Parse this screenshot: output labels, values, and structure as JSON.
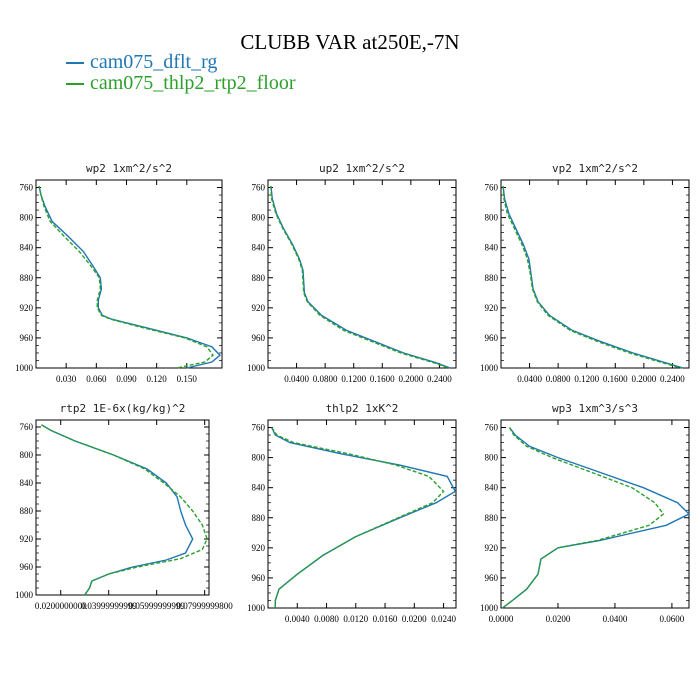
{
  "title": "CLUBB VAR at250E,-7N",
  "legend": [
    {
      "label": "cam075_dflt_rg",
      "color": "#1f77b4",
      "style": "solid"
    },
    {
      "label": "cam075_thlp2_rtp2_floor",
      "color": "#2ca02c",
      "style": "dashed"
    }
  ],
  "chart_data": [
    {
      "type": "line",
      "title": "wp2  1xm^2/s^2",
      "ylim": [
        1000,
        750
      ],
      "xlim": [
        0,
        0.185
      ],
      "yticks": [
        "760",
        "800",
        "840",
        "880",
        "920",
        "960",
        "1000"
      ],
      "xticks": [
        {
          "v": 0.03,
          "t": "0.030"
        },
        {
          "v": 0.06,
          "t": "0.060"
        },
        {
          "v": 0.09,
          "t": "0.090"
        },
        {
          "v": 0.12,
          "t": "0.120"
        },
        {
          "v": 0.15,
          "t": "0.150"
        }
      ],
      "series": [
        {
          "name": "cam075_dflt_rg",
          "x": [
            0.003,
            0.005,
            0.009,
            0.016,
            0.032,
            0.047,
            0.057,
            0.064,
            0.065,
            0.062,
            0.062,
            0.066,
            0.075,
            0.105,
            0.15,
            0.175,
            0.183,
            0.175,
            0.15
          ],
          "y": [
            758,
            770,
            785,
            805,
            825,
            845,
            865,
            880,
            895,
            910,
            920,
            930,
            935,
            945,
            960,
            972,
            983,
            992,
            1000
          ]
        },
        {
          "name": "cam075_thlp2_rtp2_floor",
          "x": [
            0.003,
            0.005,
            0.008,
            0.014,
            0.028,
            0.043,
            0.055,
            0.063,
            0.064,
            0.061,
            0.061,
            0.065,
            0.074,
            0.102,
            0.148,
            0.17,
            0.176,
            0.168,
            0.14
          ],
          "y": [
            758,
            770,
            785,
            805,
            825,
            845,
            865,
            880,
            895,
            910,
            920,
            930,
            935,
            945,
            960,
            972,
            983,
            992,
            1000
          ]
        }
      ]
    },
    {
      "type": "line",
      "title": "up2  1xm^2/s^2",
      "ylim": [
        1000,
        750
      ],
      "xlim": [
        0,
        0.2632
      ],
      "yticks": [
        "760",
        "800",
        "840",
        "880",
        "920",
        "960",
        "1000"
      ],
      "xticks": [
        {
          "v": 0.04,
          "t": "0.0400"
        },
        {
          "v": 0.08,
          "t": "0.0800"
        },
        {
          "v": 0.12,
          "t": "0.1200"
        },
        {
          "v": 0.16,
          "t": "0.1600"
        },
        {
          "v": 0.2,
          "t": "0.2000"
        },
        {
          "v": 0.24,
          "t": "0.2400"
        }
      ],
      "series": [
        {
          "name": "cam075_dflt_rg",
          "x": [
            0.004,
            0.006,
            0.012,
            0.022,
            0.034,
            0.044,
            0.049,
            0.05,
            0.051,
            0.056,
            0.075,
            0.11,
            0.15,
            0.19,
            0.235,
            0.255
          ],
          "y": [
            758,
            775,
            795,
            815,
            835,
            855,
            870,
            885,
            900,
            912,
            930,
            950,
            965,
            980,
            993,
            1000
          ]
        },
        {
          "name": "cam075_thlp2_rtp2_floor",
          "x": [
            0.004,
            0.005,
            0.011,
            0.021,
            0.033,
            0.043,
            0.048,
            0.049,
            0.05,
            0.055,
            0.073,
            0.106,
            0.146,
            0.186,
            0.232,
            0.253
          ],
          "y": [
            758,
            775,
            795,
            815,
            835,
            855,
            870,
            885,
            900,
            912,
            930,
            950,
            965,
            980,
            993,
            1000
          ]
        }
      ]
    },
    {
      "type": "line",
      "title": "vp2  1xm^2/s^2",
      "ylim": [
        1000,
        750
      ],
      "xlim": [
        0,
        0.2632
      ],
      "yticks": [
        "760",
        "800",
        "840",
        "880",
        "920",
        "960",
        "1000"
      ],
      "xticks": [
        {
          "v": 0.04,
          "t": "0.0400"
        },
        {
          "v": 0.08,
          "t": "0.0800"
        },
        {
          "v": 0.12,
          "t": "0.1200"
        },
        {
          "v": 0.16,
          "t": "0.1600"
        },
        {
          "v": 0.2,
          "t": "0.2000"
        },
        {
          "v": 0.24,
          "t": "0.2400"
        }
      ],
      "series": [
        {
          "name": "cam075_dflt_rg",
          "x": [
            0.003,
            0.005,
            0.011,
            0.021,
            0.031,
            0.039,
            0.042,
            0.045,
            0.052,
            0.068,
            0.1,
            0.14,
            0.185,
            0.23,
            0.255
          ],
          "y": [
            758,
            775,
            795,
            815,
            835,
            855,
            875,
            895,
            912,
            930,
            950,
            965,
            980,
            993,
            1000
          ]
        },
        {
          "name": "cam075_thlp2_rtp2_floor",
          "x": [
            0.003,
            0.004,
            0.009,
            0.019,
            0.029,
            0.037,
            0.041,
            0.044,
            0.051,
            0.066,
            0.097,
            0.136,
            0.18,
            0.226,
            0.252
          ],
          "y": [
            758,
            775,
            795,
            815,
            835,
            855,
            875,
            895,
            912,
            930,
            950,
            965,
            980,
            993,
            1000
          ]
        }
      ]
    },
    {
      "type": "line",
      "title": "rtp2  1E-6x(kg/kg)^2",
      "ylim": [
        1000,
        750
      ],
      "xlim": [
        0.0097,
        0.0818
      ],
      "yticks": [
        "760",
        "800",
        "840",
        "880",
        "920",
        "960",
        "1000"
      ],
      "xticks": [
        {
          "v": 0.02,
          "t": "0.0200000000"
        },
        {
          "v": 0.04,
          "t": "0.03999999999"
        },
        {
          "v": 0.06,
          "t": "0.05999999999"
        },
        {
          "v": 0.08,
          "t": "0.07999999800"
        }
      ],
      "series": [
        {
          "name": "cam075_dflt_rg",
          "x": [
            0.012,
            0.016,
            0.026,
            0.042,
            0.056,
            0.064,
            0.0685,
            0.07,
            0.072,
            0.075,
            0.072,
            0.064,
            0.05,
            0.04,
            0.033,
            0.032,
            0.03
          ],
          "y": [
            757,
            765,
            780,
            800,
            820,
            840,
            860,
            880,
            900,
            920,
            940,
            950,
            960,
            970,
            980,
            990,
            1000
          ]
        },
        {
          "name": "cam075_thlp2_rtp2_floor",
          "x": [
            0.012,
            0.016,
            0.026,
            0.042,
            0.055,
            0.063,
            0.07,
            0.075,
            0.079,
            0.081,
            0.079,
            0.07,
            0.052,
            0.04,
            0.033,
            0.032,
            0.03
          ],
          "y": [
            757,
            765,
            780,
            800,
            820,
            840,
            860,
            880,
            900,
            920,
            935,
            948,
            960,
            970,
            980,
            990,
            1000
          ]
        }
      ]
    },
    {
      "type": "line",
      "title": "thlp2  1xK^2",
      "ylim": [
        1000,
        750
      ],
      "xlim": [
        0,
        0.0257
      ],
      "yticks": [
        "760",
        "800",
        "840",
        "880",
        "920",
        "960",
        "1000"
      ],
      "xticks": [
        {
          "v": 0.004,
          "t": "0.0040"
        },
        {
          "v": 0.008,
          "t": "0.0080"
        },
        {
          "v": 0.012,
          "t": "0.0120"
        },
        {
          "v": 0.016,
          "t": "0.0160"
        },
        {
          "v": 0.02,
          "t": "0.0200"
        },
        {
          "v": 0.024,
          "t": "0.0240"
        }
      ],
      "series": [
        {
          "name": "cam075_dflt_rg",
          "x": [
            0.0005,
            0.001,
            0.003,
            0.01,
            0.018,
            0.0245,
            0.0256,
            0.023,
            0.018,
            0.012,
            0.0075,
            0.004,
            0.0015,
            0.001,
            0.001
          ],
          "y": [
            760,
            770,
            780,
            795,
            810,
            825,
            845,
            860,
            880,
            905,
            930,
            955,
            975,
            990,
            1000
          ]
        },
        {
          "name": "cam075_thlp2_rtp2_floor",
          "x": [
            0.0005,
            0.0012,
            0.0035,
            0.011,
            0.0175,
            0.022,
            0.024,
            0.0225,
            0.0178,
            0.012,
            0.0075,
            0.004,
            0.0015,
            0.001,
            0.001
          ],
          "y": [
            760,
            770,
            780,
            795,
            810,
            825,
            845,
            860,
            880,
            905,
            930,
            955,
            975,
            990,
            1000
          ]
        }
      ]
    },
    {
      "type": "line",
      "title": "wp3  1xm^3/s^3",
      "ylim": [
        1000,
        750
      ],
      "xlim": [
        0,
        0.066
      ],
      "yticks": [
        "760",
        "800",
        "840",
        "880",
        "920",
        "960",
        "1000"
      ],
      "xticks": [
        {
          "v": 0,
          "t": "0.0000"
        },
        {
          "v": 0.02,
          "t": "0.0200"
        },
        {
          "v": 0.04,
          "t": "0.0400"
        },
        {
          "v": 0.06,
          "t": "0.0600"
        }
      ],
      "series": [
        {
          "name": "cam075_dflt_rg",
          "x": [
            0.003,
            0.005,
            0.01,
            0.02,
            0.035,
            0.05,
            0.062,
            0.066,
            0.058,
            0.035,
            0.02,
            0.014,
            0.013,
            0.009,
            0.004,
            0.0005
          ],
          "y": [
            760,
            770,
            785,
            800,
            820,
            840,
            860,
            875,
            890,
            910,
            920,
            935,
            955,
            975,
            990,
            1000
          ]
        },
        {
          "name": "cam075_thlp2_rtp2_floor",
          "x": [
            0.003,
            0.0045,
            0.009,
            0.018,
            0.032,
            0.046,
            0.054,
            0.057,
            0.052,
            0.034,
            0.02,
            0.014,
            0.013,
            0.009,
            0.004,
            0.0005
          ],
          "y": [
            760,
            770,
            785,
            800,
            820,
            840,
            860,
            875,
            890,
            910,
            920,
            935,
            955,
            975,
            990,
            1000
          ]
        }
      ]
    }
  ]
}
